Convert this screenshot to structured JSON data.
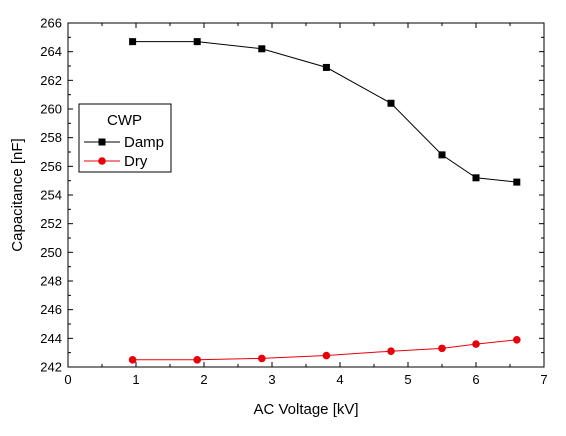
{
  "chart_data": {
    "type": "line",
    "xlabel": "AC Voltage [kV]",
    "ylabel": "Capacitance [nF]",
    "xlim": [
      0,
      7
    ],
    "ylim": [
      242,
      266
    ],
    "xticks": [
      "0",
      "1",
      "2",
      "3",
      "4",
      "5",
      "6",
      "7"
    ],
    "yticks": [
      "242",
      "244",
      "246",
      "248",
      "250",
      "252",
      "254",
      "256",
      "258",
      "260",
      "262",
      "264",
      "266"
    ],
    "grid": false,
    "legend": {
      "title": "CWP",
      "placement": "left"
    },
    "series": [
      {
        "name": "Damp",
        "color": "#000000",
        "marker": "square",
        "x": [
          0.95,
          1.9,
          2.85,
          3.8,
          4.75,
          5.5,
          6.0,
          6.6
        ],
        "y": [
          264.7,
          264.7,
          264.2,
          262.9,
          260.4,
          256.8,
          255.2,
          254.9
        ]
      },
      {
        "name": "Dry",
        "color": "#e8000b",
        "marker": "circle",
        "x": [
          0.95,
          1.9,
          2.85,
          3.8,
          4.75,
          5.5,
          6.0,
          6.6
        ],
        "y": [
          242.5,
          242.5,
          242.6,
          242.8,
          243.1,
          243.3,
          243.6,
          243.9
        ]
      }
    ]
  }
}
